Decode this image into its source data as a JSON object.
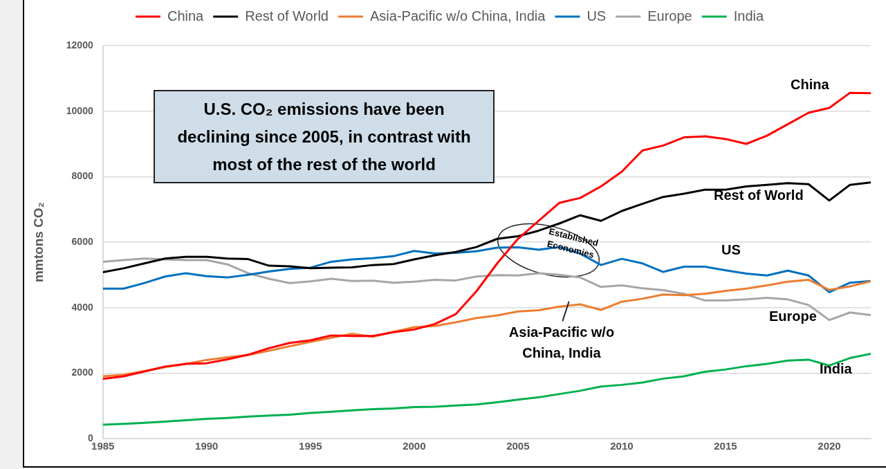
{
  "chart_data": {
    "type": "line",
    "ylabel": "mmtons CO₂",
    "x": [
      1985,
      1986,
      1987,
      1988,
      1989,
      1990,
      1991,
      1992,
      1993,
      1994,
      1995,
      1996,
      1997,
      1998,
      1999,
      2000,
      2001,
      2002,
      2003,
      2004,
      2005,
      2006,
      2007,
      2008,
      2009,
      2010,
      2011,
      2012,
      2013,
      2014,
      2015,
      2016,
      2017,
      2018,
      2019,
      2020,
      2021,
      2022
    ],
    "xlim": [
      1985,
      2022
    ],
    "xticks": [
      1985,
      1990,
      1995,
      2000,
      2005,
      2010,
      2015,
      2020
    ],
    "ylim": [
      0,
      12000
    ],
    "yticks": [
      0,
      2000,
      4000,
      6000,
      8000,
      10000,
      12000
    ],
    "grid": "y",
    "legend": "top",
    "marker": "none",
    "line_style": "solid",
    "series": [
      {
        "name": "China",
        "color": "#ff0000",
        "values": [
          1820,
          1900,
          2050,
          2200,
          2280,
          2300,
          2420,
          2560,
          2760,
          2920,
          3000,
          3150,
          3130,
          3130,
          3250,
          3330,
          3500,
          3800,
          4500,
          5350,
          6100,
          6650,
          7200,
          7350,
          7700,
          8150,
          8800,
          8950,
          9200,
          9230,
          9150,
          9000,
          9250,
          9600,
          9950,
          10100,
          10560,
          10550
        ]
      },
      {
        "name": "Rest of World",
        "color": "#000000",
        "values": [
          5080,
          5200,
          5350,
          5500,
          5550,
          5550,
          5500,
          5480,
          5280,
          5260,
          5200,
          5220,
          5230,
          5300,
          5330,
          5470,
          5600,
          5700,
          5850,
          6100,
          6180,
          6350,
          6570,
          6820,
          6650,
          6950,
          7170,
          7380,
          7480,
          7600,
          7600,
          7700,
          7750,
          7800,
          7770,
          7270,
          7750,
          7820
        ]
      },
      {
        "name": "Asia-Pacific w/o China, India",
        "color": "#ed7d31",
        "values": [
          1900,
          1950,
          2060,
          2180,
          2280,
          2400,
          2480,
          2550,
          2680,
          2820,
          2950,
          3080,
          3200,
          3110,
          3260,
          3400,
          3440,
          3550,
          3680,
          3760,
          3880,
          3920,
          4030,
          4100,
          3930,
          4180,
          4270,
          4400,
          4380,
          4420,
          4510,
          4580,
          4680,
          4790,
          4850,
          4540,
          4650,
          4800
        ]
      },
      {
        "name": "US",
        "color": "#0070c0",
        "values": [
          4580,
          4580,
          4750,
          4950,
          5050,
          4960,
          4920,
          5000,
          5100,
          5180,
          5220,
          5400,
          5470,
          5510,
          5570,
          5730,
          5650,
          5670,
          5720,
          5830,
          5840,
          5770,
          5850,
          5650,
          5300,
          5490,
          5350,
          5090,
          5250,
          5250,
          5140,
          5040,
          4980,
          5130,
          4980,
          4470,
          4760,
          4810
        ]
      },
      {
        "name": "Europe",
        "color": "#a6a6a6",
        "values": [
          5400,
          5450,
          5500,
          5470,
          5450,
          5450,
          5320,
          5050,
          4880,
          4750,
          4800,
          4880,
          4810,
          4820,
          4760,
          4790,
          4850,
          4830,
          4950,
          4990,
          4980,
          5050,
          5000,
          4920,
          4630,
          4680,
          4590,
          4530,
          4420,
          4220,
          4220,
          4250,
          4300,
          4250,
          4080,
          3620,
          3850,
          3770
        ]
      },
      {
        "name": "India",
        "color": "#00b050",
        "values": [
          420,
          450,
          480,
          520,
          560,
          600,
          630,
          670,
          700,
          730,
          780,
          820,
          860,
          900,
          920,
          960,
          970,
          1010,
          1040,
          1110,
          1190,
          1260,
          1360,
          1460,
          1590,
          1640,
          1710,
          1830,
          1900,
          2040,
          2110,
          2210,
          2280,
          2380,
          2410,
          2230,
          2460,
          2590
        ]
      }
    ],
    "annotations": [
      "U.S. CO₂ emissions have been declining since 2005, in contrast with most of the rest of the world",
      "Established Economies",
      "China",
      "Rest of World",
      "US",
      "Europe",
      "India",
      "Asia-Pacific w/o China, India"
    ]
  }
}
